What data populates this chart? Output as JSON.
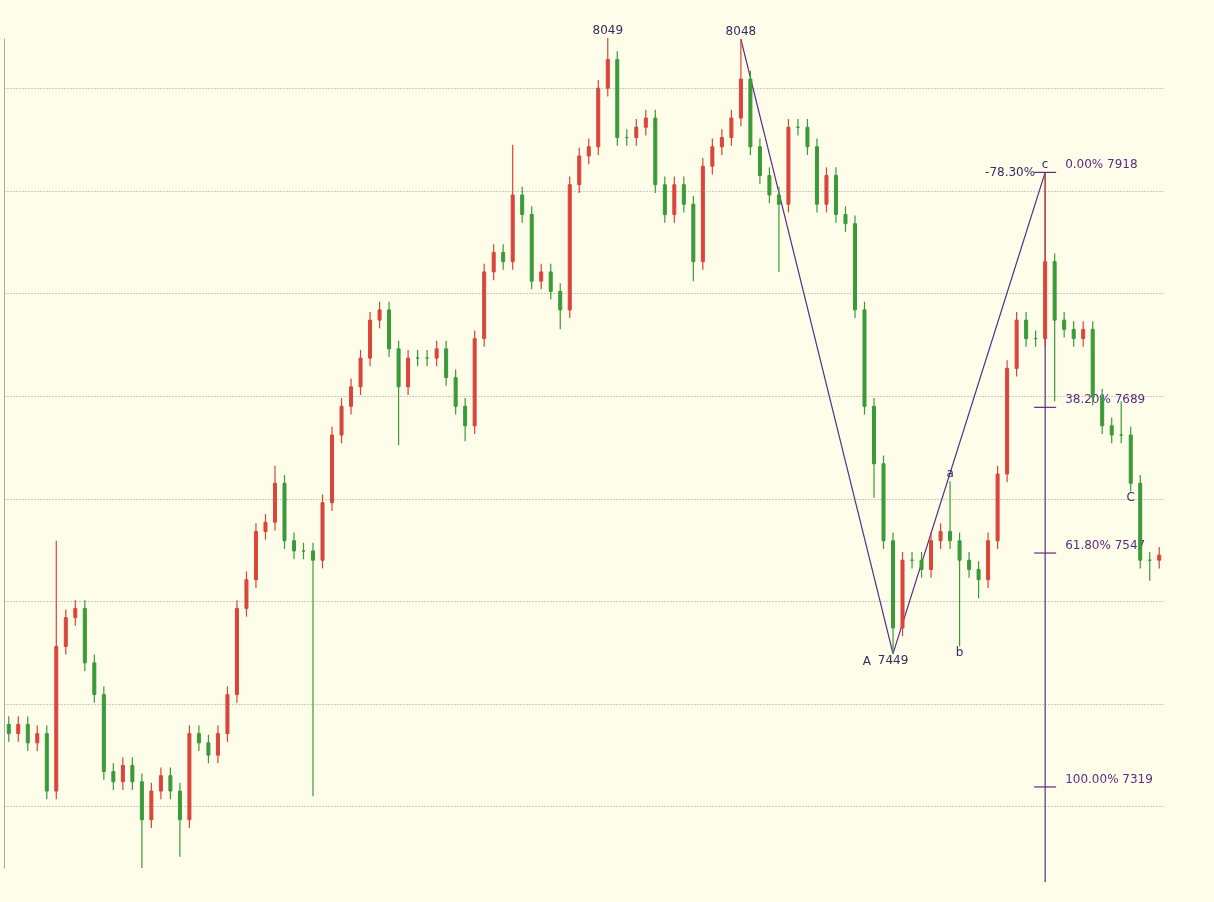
{
  "chart_data": {
    "type": "candlestick",
    "categories": [
      null,
      null,
      null,
      null,
      null,
      null,
      null,
      null,
      null,
      null,
      null,
      null,
      null,
      null,
      null,
      null,
      null,
      null,
      null,
      null,
      null,
      null,
      null,
      null,
      null,
      null,
      null,
      null,
      null,
      null,
      null,
      null,
      null,
      null,
      null,
      null,
      null,
      null,
      null,
      null,
      null,
      null,
      null,
      null,
      null,
      null,
      null,
      null,
      null,
      null,
      null,
      null,
      null,
      null,
      null,
      null,
      null,
      null,
      null,
      null,
      null,
      null,
      null,
      null,
      null,
      null,
      null,
      null,
      null,
      null,
      null,
      null,
      null,
      null,
      null,
      null,
      null,
      null,
      null,
      null,
      null,
      null,
      null,
      null,
      null,
      null,
      null,
      null,
      null,
      null,
      null,
      null,
      null,
      null,
      null,
      null,
      null,
      null,
      null,
      null,
      null,
      null,
      null,
      null,
      null,
      null,
      null,
      null,
      null,
      null,
      null,
      null,
      null,
      null,
      null,
      null,
      null,
      null,
      null,
      null,
      null,
      null
    ],
    "ohlc": [
      [
        7380,
        7388,
        7363,
        7371
      ],
      [
        7371,
        7388,
        7363,
        7380
      ],
      [
        7380,
        7388,
        7354,
        7362
      ],
      [
        7362,
        7379,
        7354,
        7371
      ],
      [
        7371,
        7379,
        7307,
        7315
      ],
      [
        7315,
        7559,
        7307,
        7456
      ],
      [
        7456,
        7492,
        7448,
        7484
      ],
      [
        7484,
        7501,
        7476,
        7493
      ],
      [
        7493,
        7501,
        7432,
        7440
      ],
      [
        7440,
        7448,
        7401,
        7409
      ],
      [
        7409,
        7417,
        7326,
        7334
      ],
      [
        7334,
        7342,
        7316,
        7324
      ],
      [
        7324,
        7348,
        7316,
        7340
      ],
      [
        7340,
        7348,
        7316,
        7324
      ],
      [
        7324,
        7332,
        7240,
        7287
      ],
      [
        7287,
        7323,
        7279,
        7315
      ],
      [
        7315,
        7338,
        7307,
        7330
      ],
      [
        7330,
        7338,
        7307,
        7315
      ],
      [
        7315,
        7323,
        7251,
        7287
      ],
      [
        7287,
        7379,
        7279,
        7371
      ],
      [
        7371,
        7379,
        7354,
        7362
      ],
      [
        7362,
        7370,
        7342,
        7350
      ],
      [
        7350,
        7379,
        7342,
        7371
      ],
      [
        7371,
        7417,
        7363,
        7409
      ],
      [
        7409,
        7501,
        7401,
        7493
      ],
      [
        7493,
        7529,
        7485,
        7521
      ],
      [
        7521,
        7576,
        7513,
        7568
      ],
      [
        7568,
        7585,
        7560,
        7577
      ],
      [
        7577,
        7632,
        7569,
        7615
      ],
      [
        7615,
        7623,
        7551,
        7559
      ],
      [
        7559,
        7567,
        7541,
        7549
      ],
      [
        7549,
        7557,
        7541,
        7549
      ],
      [
        7549,
        7557,
        7310,
        7540
      ],
      [
        7540,
        7604,
        7532,
        7596
      ],
      [
        7596,
        7670,
        7588,
        7662
      ],
      [
        7662,
        7698,
        7654,
        7690
      ],
      [
        7690,
        7717,
        7682,
        7709
      ],
      [
        7709,
        7745,
        7701,
        7737
      ],
      [
        7737,
        7782,
        7729,
        7774
      ],
      [
        7774,
        7792,
        7766,
        7784
      ],
      [
        7784,
        7792,
        7738,
        7746
      ],
      [
        7746,
        7754,
        7652,
        7709
      ],
      [
        7709,
        7745,
        7701,
        7737
      ],
      [
        7737,
        7745,
        7729,
        7737
      ],
      [
        7737,
        7745,
        7729,
        7737
      ],
      [
        7737,
        7754,
        7729,
        7746
      ],
      [
        7746,
        7754,
        7710,
        7718
      ],
      [
        7718,
        7726,
        7682,
        7690
      ],
      [
        7690,
        7698,
        7656,
        7671
      ],
      [
        7671,
        7764,
        7663,
        7756
      ],
      [
        7756,
        7829,
        7748,
        7821
      ],
      [
        7821,
        7848,
        7813,
        7840
      ],
      [
        7840,
        7848,
        7823,
        7831
      ],
      [
        7831,
        7945,
        7823,
        7896
      ],
      [
        7896,
        7904,
        7869,
        7877
      ],
      [
        7877,
        7885,
        7804,
        7812
      ],
      [
        7812,
        7829,
        7804,
        7821
      ],
      [
        7821,
        7829,
        7794,
        7802
      ],
      [
        7802,
        7810,
        7765,
        7784
      ],
      [
        7784,
        7914,
        7776,
        7906
      ],
      [
        7906,
        7942,
        7898,
        7934
      ],
      [
        7934,
        7951,
        7926,
        7943
      ],
      [
        7943,
        8008,
        7935,
        8000
      ],
      [
        8000,
        8049,
        7992,
        8028
      ],
      [
        8028,
        8036,
        7944,
        7952
      ],
      [
        7952,
        7960,
        7944,
        7952
      ],
      [
        7952,
        7970,
        7944,
        7962
      ],
      [
        7962,
        7979,
        7954,
        7971
      ],
      [
        7971,
        7979,
        7898,
        7906
      ],
      [
        7906,
        7914,
        7869,
        7877
      ],
      [
        7877,
        7914,
        7869,
        7906
      ],
      [
        7906,
        7914,
        7879,
        7887
      ],
      [
        7887,
        7895,
        7812,
        7831
      ],
      [
        7831,
        7932,
        7823,
        7924
      ],
      [
        7924,
        7951,
        7916,
        7943
      ],
      [
        7943,
        7960,
        7935,
        7952
      ],
      [
        7952,
        7979,
        7944,
        7971
      ],
      [
        7971,
        8048,
        7963,
        8009
      ],
      [
        8009,
        8017,
        7935,
        7943
      ],
      [
        7943,
        7951,
        7907,
        7915
      ],
      [
        7915,
        7923,
        7888,
        7896
      ],
      [
        7896,
        7904,
        7821,
        7887
      ],
      [
        7887,
        7970,
        7879,
        7962
      ],
      [
        7962,
        7970,
        7954,
        7962
      ],
      [
        7962,
        7970,
        7935,
        7943
      ],
      [
        7943,
        7951,
        7879,
        7887
      ],
      [
        7887,
        7923,
        7879,
        7915
      ],
      [
        7915,
        7923,
        7869,
        7877
      ],
      [
        7877,
        7885,
        7860,
        7868
      ],
      [
        7868,
        7876,
        7776,
        7784
      ],
      [
        7784,
        7792,
        7682,
        7690
      ],
      [
        7690,
        7698,
        7601,
        7634
      ],
      [
        7634,
        7642,
        7551,
        7559
      ],
      [
        7559,
        7567,
        7449,
        7474
      ],
      [
        7474,
        7548,
        7466,
        7540
      ],
      [
        7540,
        7548,
        7532,
        7540
      ],
      [
        7540,
        7548,
        7523,
        7531
      ],
      [
        7531,
        7567,
        7523,
        7559
      ],
      [
        7559,
        7576,
        7551,
        7568
      ],
      [
        7568,
        7617,
        7551,
        7559
      ],
      [
        7559,
        7567,
        7456,
        7540
      ],
      [
        7540,
        7548,
        7523,
        7531
      ],
      [
        7531,
        7539,
        7503,
        7521
      ],
      [
        7521,
        7567,
        7513,
        7559
      ],
      [
        7559,
        7632,
        7551,
        7624
      ],
      [
        7624,
        7735,
        7616,
        7727
      ],
      [
        7727,
        7782,
        7719,
        7774
      ],
      [
        7774,
        7782,
        7748,
        7756
      ],
      [
        7756,
        7764,
        7748,
        7756
      ],
      [
        7756,
        7918,
        7748,
        7831
      ],
      [
        7831,
        7839,
        7695,
        7774
      ],
      [
        7774,
        7782,
        7757,
        7765
      ],
      [
        7765,
        7773,
        7748,
        7756
      ],
      [
        7756,
        7773,
        7748,
        7765
      ],
      [
        7765,
        7773,
        7691,
        7699
      ],
      [
        7699,
        7707,
        7663,
        7671
      ],
      [
        7671,
        7679,
        7654,
        7662
      ],
      [
        7662,
        7695,
        7654,
        7662
      ],
      [
        7662,
        7670,
        7607,
        7615
      ],
      [
        7615,
        7623,
        7532,
        7540
      ],
      [
        7540,
        7548,
        7520,
        7540
      ],
      [
        7540,
        7553,
        7532,
        7545
      ]
    ],
    "colors": [
      "#3a9a3a",
      "#d9453a",
      "#3a9a3a",
      "#d9453a",
      "#3a9a3a",
      "#d9453a",
      "#d9453a",
      "#d9453a",
      "#3a9a3a",
      "#3a9a3a",
      "#3a9a3a",
      "#3a9a3a",
      "#d9453a",
      "#3a9a3a",
      "#3a9a3a",
      "#d9453a",
      "#d9453a",
      "#3a9a3a",
      "#3a9a3a",
      "#d9453a",
      "#3a9a3a",
      "#3a9a3a",
      "#d9453a",
      "#d9453a",
      "#d9453a",
      "#d9453a",
      "#d9453a",
      "#d9453a",
      "#d9453a",
      "#3a9a3a",
      "#3a9a3a",
      "#3a9a3a",
      "#3a9a3a",
      "#d9453a",
      "#d9453a",
      "#d9453a",
      "#d9453a",
      "#d9453a",
      "#d9453a",
      "#d9453a",
      "#3a9a3a",
      "#3a9a3a",
      "#d9453a",
      "#3a9a3a",
      "#3a9a3a",
      "#d9453a",
      "#3a9a3a",
      "#3a9a3a",
      "#3a9a3a",
      "#d9453a",
      "#d9453a",
      "#d9453a",
      "#3a9a3a",
      "#d9453a",
      "#3a9a3a",
      "#3a9a3a",
      "#d9453a",
      "#3a9a3a",
      "#3a9a3a",
      "#d9453a",
      "#d9453a",
      "#d9453a",
      "#d9453a",
      "#d9453a",
      "#3a9a3a",
      "#3a9a3a",
      "#d9453a",
      "#d9453a",
      "#3a9a3a",
      "#3a9a3a",
      "#d9453a",
      "#3a9a3a",
      "#3a9a3a",
      "#d9453a",
      "#d9453a",
      "#d9453a",
      "#d9453a",
      "#d9453a",
      "#3a9a3a",
      "#3a9a3a",
      "#3a9a3a",
      "#3a9a3a",
      "#d9453a",
      "#3a9a3a",
      "#3a9a3a",
      "#3a9a3a",
      "#d9453a",
      "#3a9a3a",
      "#3a9a3a",
      "#3a9a3a",
      "#3a9a3a",
      "#3a9a3a",
      "#3a9a3a",
      "#3a9a3a",
      "#d9453a",
      "#3a9a3a",
      "#3a9a3a",
      "#d9453a",
      "#d9453a",
      "#3a9a3a",
      "#3a9a3a",
      "#3a9a3a",
      "#3a9a3a",
      "#d9453a",
      "#d9453a",
      "#d9453a",
      "#d9453a",
      "#3a9a3a",
      "#3a9a3a",
      "#d9453a",
      "#3a9a3a",
      "#3a9a3a",
      "#3a9a3a",
      "#d9453a",
      "#3a9a3a",
      "#3a9a3a",
      "#3a9a3a",
      "#3a9a3a",
      "#3a9a3a",
      "#3a9a3a",
      "#3a9a3a",
      "#d9453a"
    ],
    "series": [
      {
        "type": "line",
        "color": "#5b2c83",
        "values": [
          null,
          null,
          null,
          null,
          null,
          null,
          null,
          null,
          null,
          null,
          null,
          null,
          null,
          null,
          null,
          null,
          null,
          null,
          null,
          null,
          null,
          null,
          null,
          null,
          null,
          null,
          null,
          null,
          null,
          null,
          null,
          null,
          null,
          null,
          null,
          null,
          null,
          null,
          null,
          null,
          null,
          null,
          null,
          null,
          null,
          null,
          null,
          null,
          null,
          null,
          null,
          null,
          null,
          null,
          null,
          null,
          null,
          null,
          null,
          null,
          null,
          null,
          null,
          null,
          null,
          null,
          null,
          null,
          null,
          null,
          null,
          null,
          null,
          null,
          null,
          null,
          null,
          8048,
          null,
          null,
          null,
          null,
          null,
          null,
          null,
          null,
          null,
          null,
          null,
          null,
          null,
          null,
          null,
          7449,
          null,
          null,
          null,
          null,
          null,
          null,
          null,
          null,
          null,
          null,
          null,
          null,
          null,
          null,
          null,
          7918,
          null,
          null,
          null,
          null,
          null,
          null,
          null,
          null,
          null,
          null,
          null,
          null
        ]
      }
    ],
    "ylim": [
      7240,
      8049
    ],
    "yticks": [
      {
        "value": 7300,
        "label": null
      },
      {
        "value": 7400,
        "label": null
      },
      {
        "value": 7500,
        "label": null
      },
      {
        "value": 7600,
        "label": null
      },
      {
        "value": 7700,
        "label": null
      },
      {
        "value": 7800,
        "label": null
      },
      {
        "value": 7900,
        "label": null
      },
      {
        "value": 8000,
        "label": null
      }
    ],
    "grid": "y",
    "tick_labels": false,
    "ref_lines": [
      {
        "axis": "y",
        "value": 7918,
        "label": "0.00%   7918",
        "color": "#5b2c83"
      },
      {
        "axis": "y",
        "value": 7689,
        "label": "38.20%   7689",
        "color": "#5b2c83"
      },
      {
        "axis": "y",
        "value": 7547,
        "label": "61.80%   7547",
        "color": "#5b2c83"
      },
      {
        "axis": "y",
        "value": 7319,
        "label": "100.00%   7319",
        "color": "#5b2c83"
      }
    ],
    "annotations": [
      {
        "text": "8049",
        "y": 8049
      },
      {
        "text": "8048",
        "y": 8048
      },
      {
        "text": "7449",
        "y": 7449
      },
      "A",
      {
        "text": "a",
        "y": 7617
      },
      {
        "text": "b",
        "y": 7456
      },
      {
        "text": "c",
        "y": 7918
      },
      "-78.30%",
      {
        "text": "C",
        "y": 7607
      }
    ]
  }
}
